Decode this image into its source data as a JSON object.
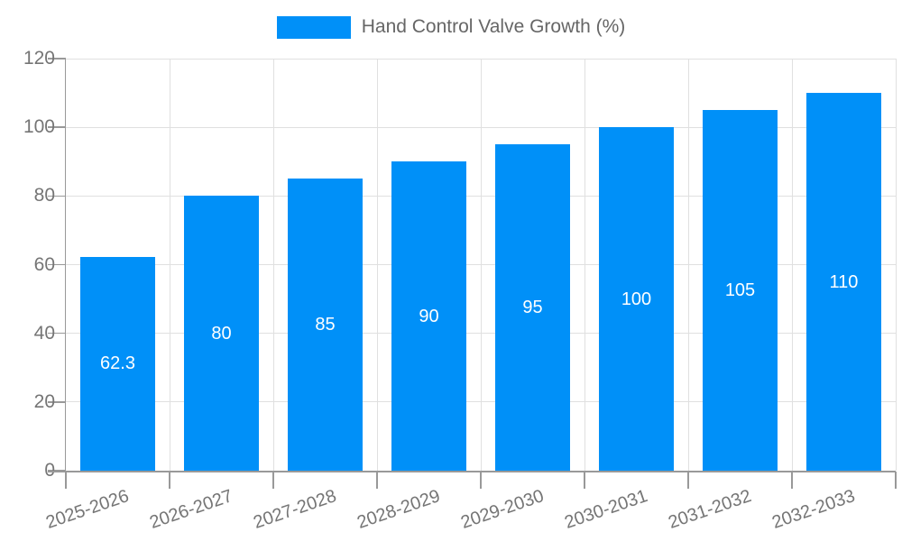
{
  "chart_data": {
    "type": "bar",
    "title": "",
    "legend": "Hand Control Valve Growth (%)",
    "categories": [
      "2025-2026",
      "2026-2027",
      "2027-2028",
      "2028-2029",
      "2029-2030",
      "2030-2031",
      "2031-2032",
      "2032-2033"
    ],
    "series": [
      {
        "name": "Hand Control Valve Growth (%)",
        "values": [
          62.3,
          80,
          85,
          90,
          95,
          100,
          105,
          110
        ]
      }
    ],
    "value_labels": [
      "62.3",
      "80",
      "85",
      "90",
      "95",
      "100",
      "105",
      "110"
    ],
    "xlabel": "",
    "ylabel": "",
    "ylim": [
      0,
      120
    ],
    "yticks": [
      0,
      20,
      40,
      60,
      80,
      100,
      120
    ],
    "grid": true,
    "legend_position": "top-center",
    "colors": {
      "bar": "#0090F8",
      "axis": "#999999",
      "grid": "#E0E0E0",
      "tick_text": "#757575",
      "legend_text": "#666666",
      "bar_label": "#FFFFFF"
    }
  }
}
